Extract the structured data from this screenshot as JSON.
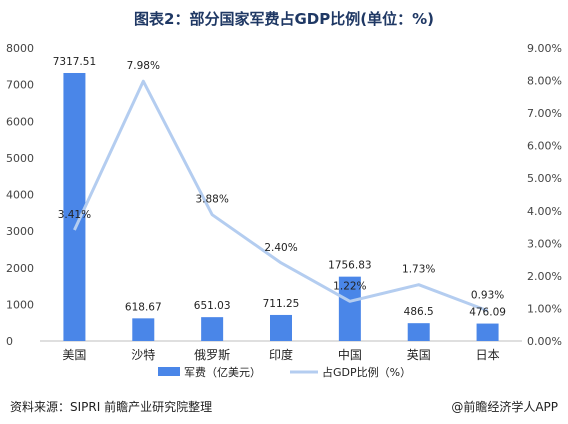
{
  "chart_data": {
    "type": "bar+line",
    "title": "图表2：部分国家军费占GDP比例(单位：%)",
    "categories": [
      "美国",
      "沙特",
      "俄罗斯",
      "印度",
      "中国",
      "英国",
      "日本"
    ],
    "series": [
      {
        "name": "军费（亿美元）",
        "type": "bar",
        "axis": "left",
        "values": [
          7317.51,
          618.67,
          651.03,
          711.25,
          1756.83,
          486.5,
          476.09
        ],
        "labels": [
          "7317.51",
          "618.67",
          "651.03",
          "711.25",
          "1756.83",
          "486.5",
          "476.09"
        ],
        "color": "#4a86e8"
      },
      {
        "name": "占GDP比例（%）",
        "type": "line",
        "axis": "right",
        "values": [
          3.41,
          7.98,
          3.88,
          2.4,
          1.22,
          1.73,
          0.93
        ],
        "labels": [
          "3.41%",
          "7.98%",
          "3.88%",
          "2.40%",
          "1.22%",
          "1.73%",
          "0.93%"
        ],
        "color": "#b4cdf0"
      }
    ],
    "y_left": {
      "range": [
        0,
        8000
      ],
      "ticks": [
        0,
        1000,
        2000,
        3000,
        4000,
        5000,
        6000,
        7000,
        8000
      ],
      "tick_labels": [
        "0",
        "1000",
        "2000",
        "3000",
        "4000",
        "5000",
        "6000",
        "7000",
        "8000"
      ]
    },
    "y_right": {
      "range": [
        0,
        9
      ],
      "ticks": [
        0,
        1,
        2,
        3,
        4,
        5,
        6,
        7,
        8,
        9
      ],
      "tick_labels": [
        "0.00%",
        "1.00%",
        "2.00%",
        "3.00%",
        "4.00%",
        "5.00%",
        "6.00%",
        "7.00%",
        "8.00%",
        "9.00%"
      ]
    },
    "grid": false,
    "legend_position": "bottom"
  },
  "footer": {
    "source": "资料来源：SIPRI 前瞻产业研究院整理",
    "brand": "@前瞻经济学人APP"
  },
  "colors": {
    "title": "#1f3864",
    "bar": "#4a86e8",
    "line": "#b4cdf0"
  }
}
